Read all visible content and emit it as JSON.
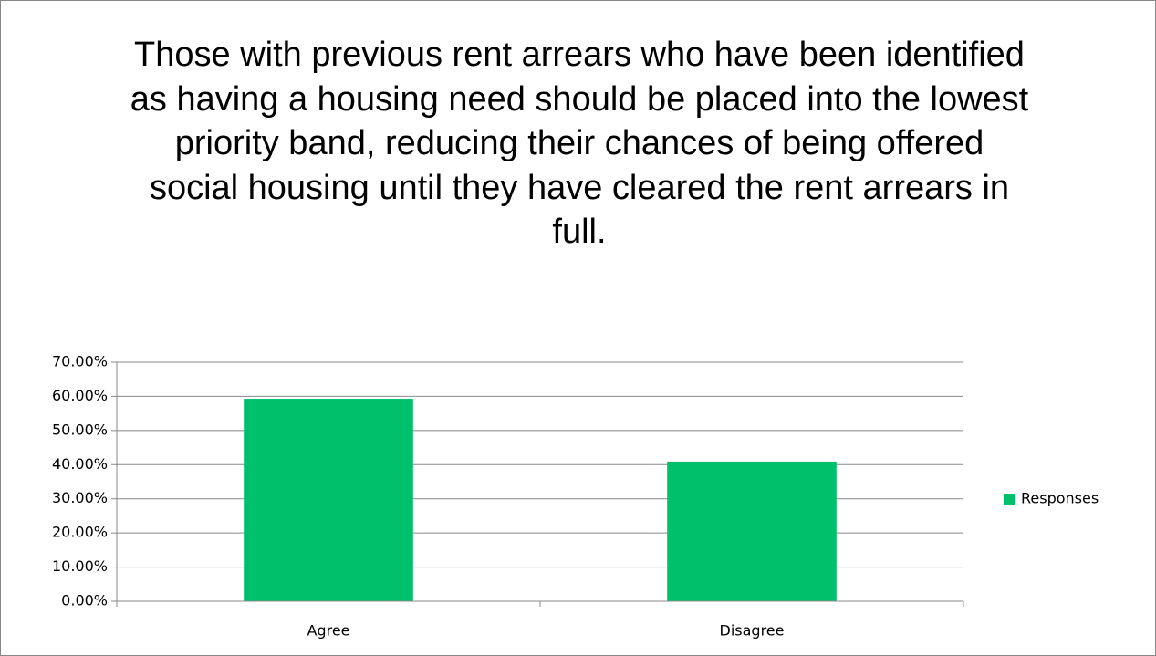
{
  "chart_data": {
    "type": "bar",
    "title": "Those with previous rent arrears who have been identified as having a housing need should be placed into the lowest priority band, reducing their chances of being offered social housing until they have cleared the rent arrears in full.",
    "categories": [
      "Agree",
      "Disagree"
    ],
    "series": [
      {
        "name": "Responses",
        "color": "#00c06c",
        "values": [
          59.3,
          40.9
        ]
      }
    ],
    "ylim": [
      0,
      70
    ],
    "yticks": [
      {
        "value": 0,
        "label": "0.00%"
      },
      {
        "value": 10,
        "label": "10.00%"
      },
      {
        "value": 20,
        "label": "20.00%"
      },
      {
        "value": 30,
        "label": "30.00%"
      },
      {
        "value": 40,
        "label": "40.00%"
      },
      {
        "value": 50,
        "label": "50.00%"
      },
      {
        "value": 60,
        "label": "60.00%"
      },
      {
        "value": 70,
        "label": "70.00%"
      }
    ],
    "grid": true,
    "legend": "right"
  }
}
